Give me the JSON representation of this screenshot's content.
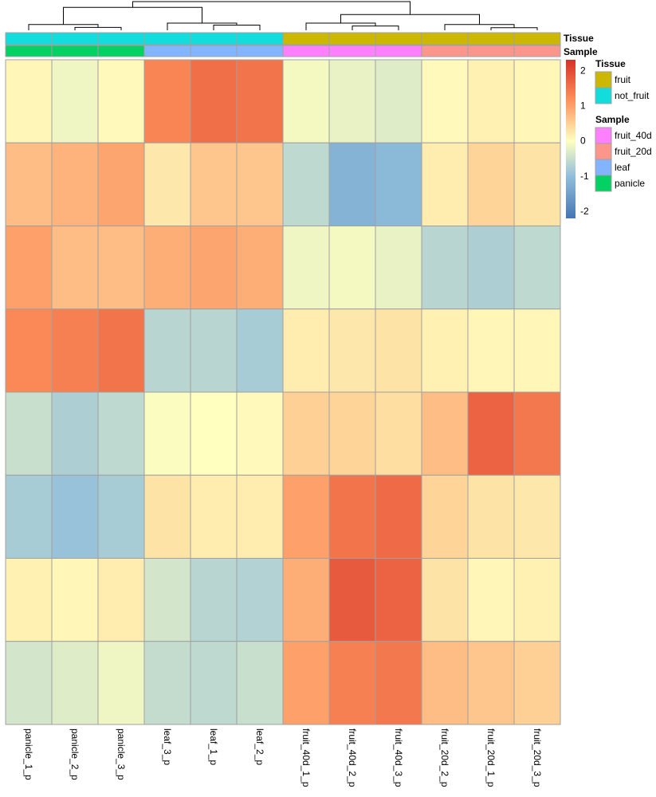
{
  "chart_data": {
    "type": "heatmap",
    "columns": [
      "panicle_1_p",
      "panicle_2_p",
      "panicle_3_p",
      "leaf_3_p",
      "leaf_1_p",
      "leaf_2_p",
      "fruit_40d_1_p",
      "fruit_40d_2_p",
      "fruit_40d_3_p",
      "fruit_20d_2_p",
      "fruit_20d_1_p",
      "fruit_20d_3_p"
    ],
    "values": [
      [
        0.1,
        -0.15,
        0.05,
        1.3,
        1.55,
        1.5,
        -0.1,
        -0.2,
        -0.3,
        0.05,
        0.15,
        0.1
      ],
      [
        0.7,
        0.8,
        0.95,
        0.25,
        0.6,
        0.6,
        -0.6,
        -1.2,
        -1.1,
        0.2,
        0.45,
        0.3
      ],
      [
        1.0,
        0.7,
        0.7,
        0.85,
        0.95,
        0.85,
        -0.15,
        -0.1,
        -0.2,
        -0.65,
        -0.75,
        -0.6
      ],
      [
        1.25,
        1.35,
        1.5,
        -0.65,
        -0.65,
        -0.8,
        0.2,
        0.25,
        0.3,
        0.15,
        0.1,
        0.1
      ],
      [
        -0.5,
        -0.75,
        -0.6,
        -0.05,
        0.0,
        0.05,
        0.5,
        0.45,
        0.35,
        0.7,
        1.7,
        1.45
      ],
      [
        -0.8,
        -0.95,
        -0.8,
        0.3,
        0.2,
        0.2,
        1.0,
        1.5,
        1.6,
        0.45,
        0.3,
        0.25
      ],
      [
        0.15,
        0.1,
        0.2,
        -0.4,
        -0.65,
        -0.7,
        0.85,
        1.8,
        1.7,
        0.3,
        0.1,
        0.15
      ],
      [
        -0.4,
        -0.3,
        -0.15,
        -0.55,
        -0.6,
        -0.5,
        1.0,
        1.35,
        1.45,
        0.7,
        0.6,
        0.5
      ]
    ],
    "annotations": {
      "tissue": {
        "label": "Tissue",
        "values": [
          "not_fruit",
          "not_fruit",
          "not_fruit",
          "not_fruit",
          "not_fruit",
          "not_fruit",
          "fruit",
          "fruit",
          "fruit",
          "fruit",
          "fruit",
          "fruit"
        ],
        "legend": [
          {
            "name": "fruit",
            "color": "#ccb800"
          },
          {
            "name": "not_fruit",
            "color": "#12dcdc"
          }
        ]
      },
      "sample": {
        "label": "Sample",
        "values": [
          "panicle",
          "panicle",
          "panicle",
          "leaf",
          "leaf",
          "leaf",
          "fruit_40d",
          "fruit_40d",
          "fruit_40d",
          "fruit_20d",
          "fruit_20d",
          "fruit_20d"
        ],
        "legend": [
          {
            "name": "fruit_40d",
            "color": "#ff80ff"
          },
          {
            "name": "fruit_20d",
            "color": "#fc968c"
          },
          {
            "name": "leaf",
            "color": "#82b4ff"
          },
          {
            "name": "panicle",
            "color": "#04d164"
          }
        ]
      }
    },
    "color_scale": {
      "range": [
        -2.2,
        2.3
      ],
      "ticks": [
        2,
        1,
        0,
        -1,
        -2
      ],
      "stops": [
        {
          "value": -2.2,
          "color": "#4575b4"
        },
        {
          "value": -1.0,
          "color": "#91bfdb"
        },
        {
          "value": 0.0,
          "color": "#ffffbf"
        },
        {
          "value": 1.2,
          "color": "#fc8d59"
        },
        {
          "value": 2.3,
          "color": "#d73027"
        }
      ]
    },
    "column_dendrogram": {
      "links": [
        {
          "a": 1,
          "b": 2,
          "h": 0.1,
          "id": "c12"
        },
        {
          "a": 0,
          "b": "c12",
          "h": 0.2,
          "id": "c012"
        },
        {
          "a": 4,
          "b": 5,
          "h": 0.18,
          "id": "c45"
        },
        {
          "a": 3,
          "b": "c45",
          "h": 0.25,
          "id": "c345"
        },
        {
          "a": "c012",
          "b": "c345",
          "h": 0.8,
          "id": "cNF"
        },
        {
          "a": 7,
          "b": 8,
          "h": 0.15,
          "id": "c78"
        },
        {
          "a": 6,
          "b": "c78",
          "h": 0.25,
          "id": "c678"
        },
        {
          "a": 10,
          "b": 11,
          "h": 0.09,
          "id": "c1011"
        },
        {
          "a": 9,
          "b": "c1011",
          "h": 0.2,
          "id": "c91011"
        },
        {
          "a": "c678",
          "b": "c91011",
          "h": 0.55,
          "id": "cF"
        },
        {
          "a": "cNF",
          "b": "cF",
          "h": 1.0,
          "id": "root"
        }
      ]
    }
  }
}
